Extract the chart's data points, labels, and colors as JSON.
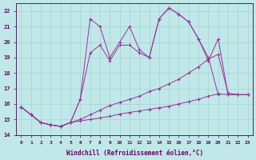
{
  "xlabel": "Windchill (Refroidissement éolien,°C)",
  "bg_color": "#c0e8e8",
  "grid_color": "#a8d0d0",
  "line_color": "#993399",
  "xlim": [
    -0.5,
    23.5
  ],
  "ylim": [
    14.0,
    22.5
  ],
  "xticks": [
    0,
    1,
    2,
    3,
    4,
    5,
    6,
    7,
    8,
    9,
    10,
    11,
    12,
    13,
    14,
    15,
    16,
    17,
    18,
    19,
    20,
    21,
    22,
    23
  ],
  "yticks": [
    14,
    15,
    16,
    17,
    18,
    19,
    20,
    21,
    22
  ],
  "line1_x": [
    0,
    1,
    2,
    3,
    4,
    5,
    6,
    7,
    8,
    9,
    10,
    11,
    12,
    13,
    14,
    15,
    16,
    17,
    18,
    19,
    20
  ],
  "line1_y": [
    15.8,
    15.3,
    14.8,
    14.65,
    14.55,
    14.8,
    16.3,
    21.5,
    21.0,
    19.0,
    20.0,
    21.0,
    19.5,
    19.0,
    21.5,
    22.2,
    21.8,
    21.3,
    20.2,
    19.0,
    16.6
  ],
  "line2_x": [
    0,
    1,
    2,
    3,
    4,
    5,
    6,
    7,
    8,
    9,
    10,
    11,
    12,
    13,
    14,
    15,
    16,
    17,
    18,
    19,
    20,
    21,
    22,
    23
  ],
  "line2_y": [
    15.8,
    15.3,
    14.8,
    14.65,
    14.55,
    14.8,
    16.3,
    19.3,
    19.8,
    18.8,
    19.8,
    19.8,
    19.3,
    19.0,
    21.5,
    22.2,
    21.8,
    21.3,
    20.2,
    18.8,
    20.2,
    16.6,
    16.6,
    16.6
  ],
  "line3_x": [
    0,
    1,
    2,
    3,
    4,
    5,
    6,
    7,
    8,
    9,
    10,
    11,
    12,
    13,
    14,
    15,
    16,
    17,
    18,
    19,
    20,
    21,
    22,
    23
  ],
  "line3_y": [
    15.8,
    15.3,
    14.8,
    14.65,
    14.55,
    14.8,
    15.0,
    15.3,
    15.6,
    15.9,
    16.1,
    16.3,
    16.5,
    16.8,
    17.0,
    17.3,
    17.6,
    18.0,
    18.4,
    18.9,
    19.2,
    16.7,
    16.6,
    16.6
  ],
  "line4_x": [
    0,
    1,
    2,
    3,
    4,
    5,
    6,
    7,
    8,
    9,
    10,
    11,
    12,
    13,
    14,
    15,
    16,
    17,
    18,
    19,
    20,
    21,
    22,
    23
  ],
  "line4_y": [
    15.8,
    15.3,
    14.8,
    14.65,
    14.55,
    14.8,
    14.9,
    15.0,
    15.1,
    15.2,
    15.35,
    15.45,
    15.55,
    15.65,
    15.75,
    15.85,
    16.0,
    16.15,
    16.3,
    16.5,
    16.65,
    16.6,
    16.6,
    16.6
  ]
}
